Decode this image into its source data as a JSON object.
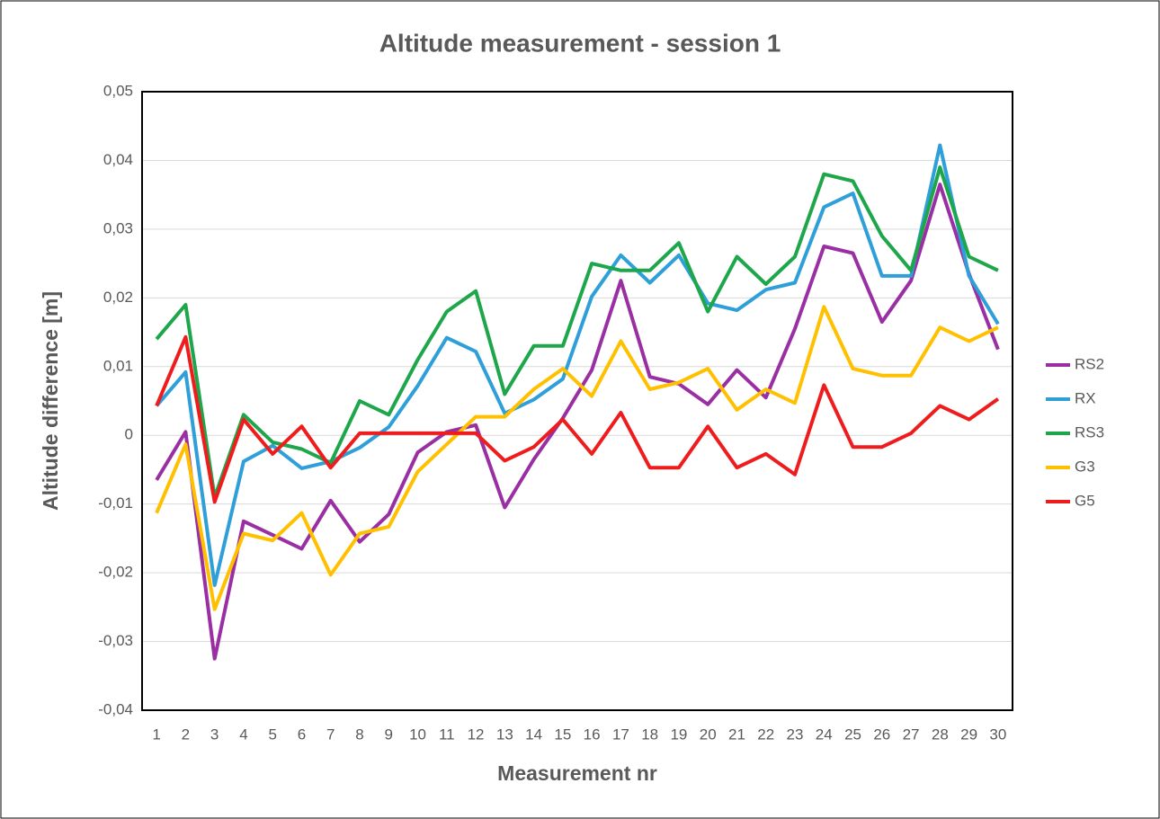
{
  "chart_data": {
    "type": "line",
    "title": "Altitude measurement - session 1",
    "x_label": "Measurement nr",
    "y_label": "Altitude difference [m]",
    "categories": [
      "1",
      "2",
      "3",
      "4",
      "5",
      "6",
      "7",
      "8",
      "9",
      "10",
      "11",
      "12",
      "13",
      "14",
      "15",
      "16",
      "17",
      "18",
      "19",
      "20",
      "21",
      "22",
      "23",
      "24",
      "25",
      "26",
      "27",
      "28",
      "29",
      "30"
    ],
    "series": [
      {
        "name": "RS2",
        "color": "#9a2fa3",
        "values": [
          -0.0065,
          0.0005,
          -0.0325,
          -0.0125,
          -0.0145,
          -0.0165,
          -0.0095,
          -0.0155,
          -0.0115,
          -0.0025,
          0.0005,
          0.0015,
          -0.0105,
          -0.0035,
          0.0025,
          0.0095,
          0.0225,
          0.0085,
          0.0075,
          0.0045,
          0.0095,
          0.0055,
          0.0155,
          0.0275,
          0.0265,
          0.0165,
          0.0225,
          0.0365,
          0.0235,
          0.0125
        ]
      },
      {
        "name": "RX",
        "color": "#2e9fd8",
        "values": [
          0.0043,
          0.0092,
          -0.0218,
          -0.0038,
          -0.0015,
          -0.0048,
          -0.0038,
          -0.0018,
          0.0012,
          0.0072,
          0.0142,
          0.0122,
          0.0032,
          0.0052,
          0.0082,
          0.0202,
          0.0262,
          0.0222,
          0.0262,
          0.0192,
          0.0182,
          0.0212,
          0.0222,
          0.0332,
          0.0352,
          0.0232,
          0.0232,
          0.0422,
          0.0232,
          0.0162
        ]
      },
      {
        "name": "RS3",
        "color": "#1ea64b",
        "values": [
          0.014,
          0.019,
          -0.009,
          0.003,
          -0.001,
          -0.002,
          -0.004,
          0.005,
          0.003,
          0.011,
          0.018,
          0.021,
          0.006,
          0.013,
          0.013,
          0.025,
          0.024,
          0.024,
          0.028,
          0.018,
          0.026,
          0.022,
          0.026,
          0.038,
          0.037,
          0.029,
          0.024,
          0.039,
          0.026,
          0.024
        ]
      },
      {
        "name": "G3",
        "color": "#ffc000",
        "values": [
          -0.0113,
          -0.0013,
          -0.0253,
          -0.0143,
          -0.0153,
          -0.0113,
          -0.0203,
          -0.0143,
          -0.0133,
          -0.0053,
          -0.0013,
          0.0027,
          0.0027,
          0.0067,
          0.0097,
          0.0057,
          0.0137,
          0.0067,
          0.0077,
          0.0097,
          0.0037,
          0.0067,
          0.0047,
          0.0187,
          0.0097,
          0.0087,
          0.0087,
          0.0157,
          0.0137,
          0.0157
        ]
      },
      {
        "name": "G5",
        "color": "#ee1c1c",
        "values": [
          0.0043,
          0.0143,
          -0.0097,
          0.0023,
          -0.0027,
          0.0013,
          -0.0047,
          0.0003,
          0.0003,
          0.0003,
          0.0003,
          0.0003,
          -0.0037,
          -0.0017,
          0.0023,
          -0.0027,
          0.0033,
          -0.0047,
          -0.0047,
          0.0013,
          -0.0047,
          -0.0027,
          -0.0057,
          0.0073,
          -0.0017,
          -0.0017,
          0.0003,
          0.0043,
          0.0023,
          0.0053
        ]
      }
    ],
    "ylim": [
      -0.04,
      0.05
    ],
    "yticks": [
      {
        "value": -0.04,
        "label": "-0,04"
      },
      {
        "value": -0.03,
        "label": "-0,03"
      },
      {
        "value": -0.02,
        "label": "-0,02"
      },
      {
        "value": -0.01,
        "label": "-0,01"
      },
      0,
      {
        "value": 0.01,
        "label": "0,01"
      },
      {
        "value": 0.02,
        "label": "0,02"
      },
      {
        "value": 0.03,
        "label": "0,03"
      },
      {
        "value": 0.04,
        "label": "0,04"
      },
      {
        "value": 0.05,
        "label": "0,05"
      }
    ],
    "grid": true,
    "legend": "right"
  }
}
